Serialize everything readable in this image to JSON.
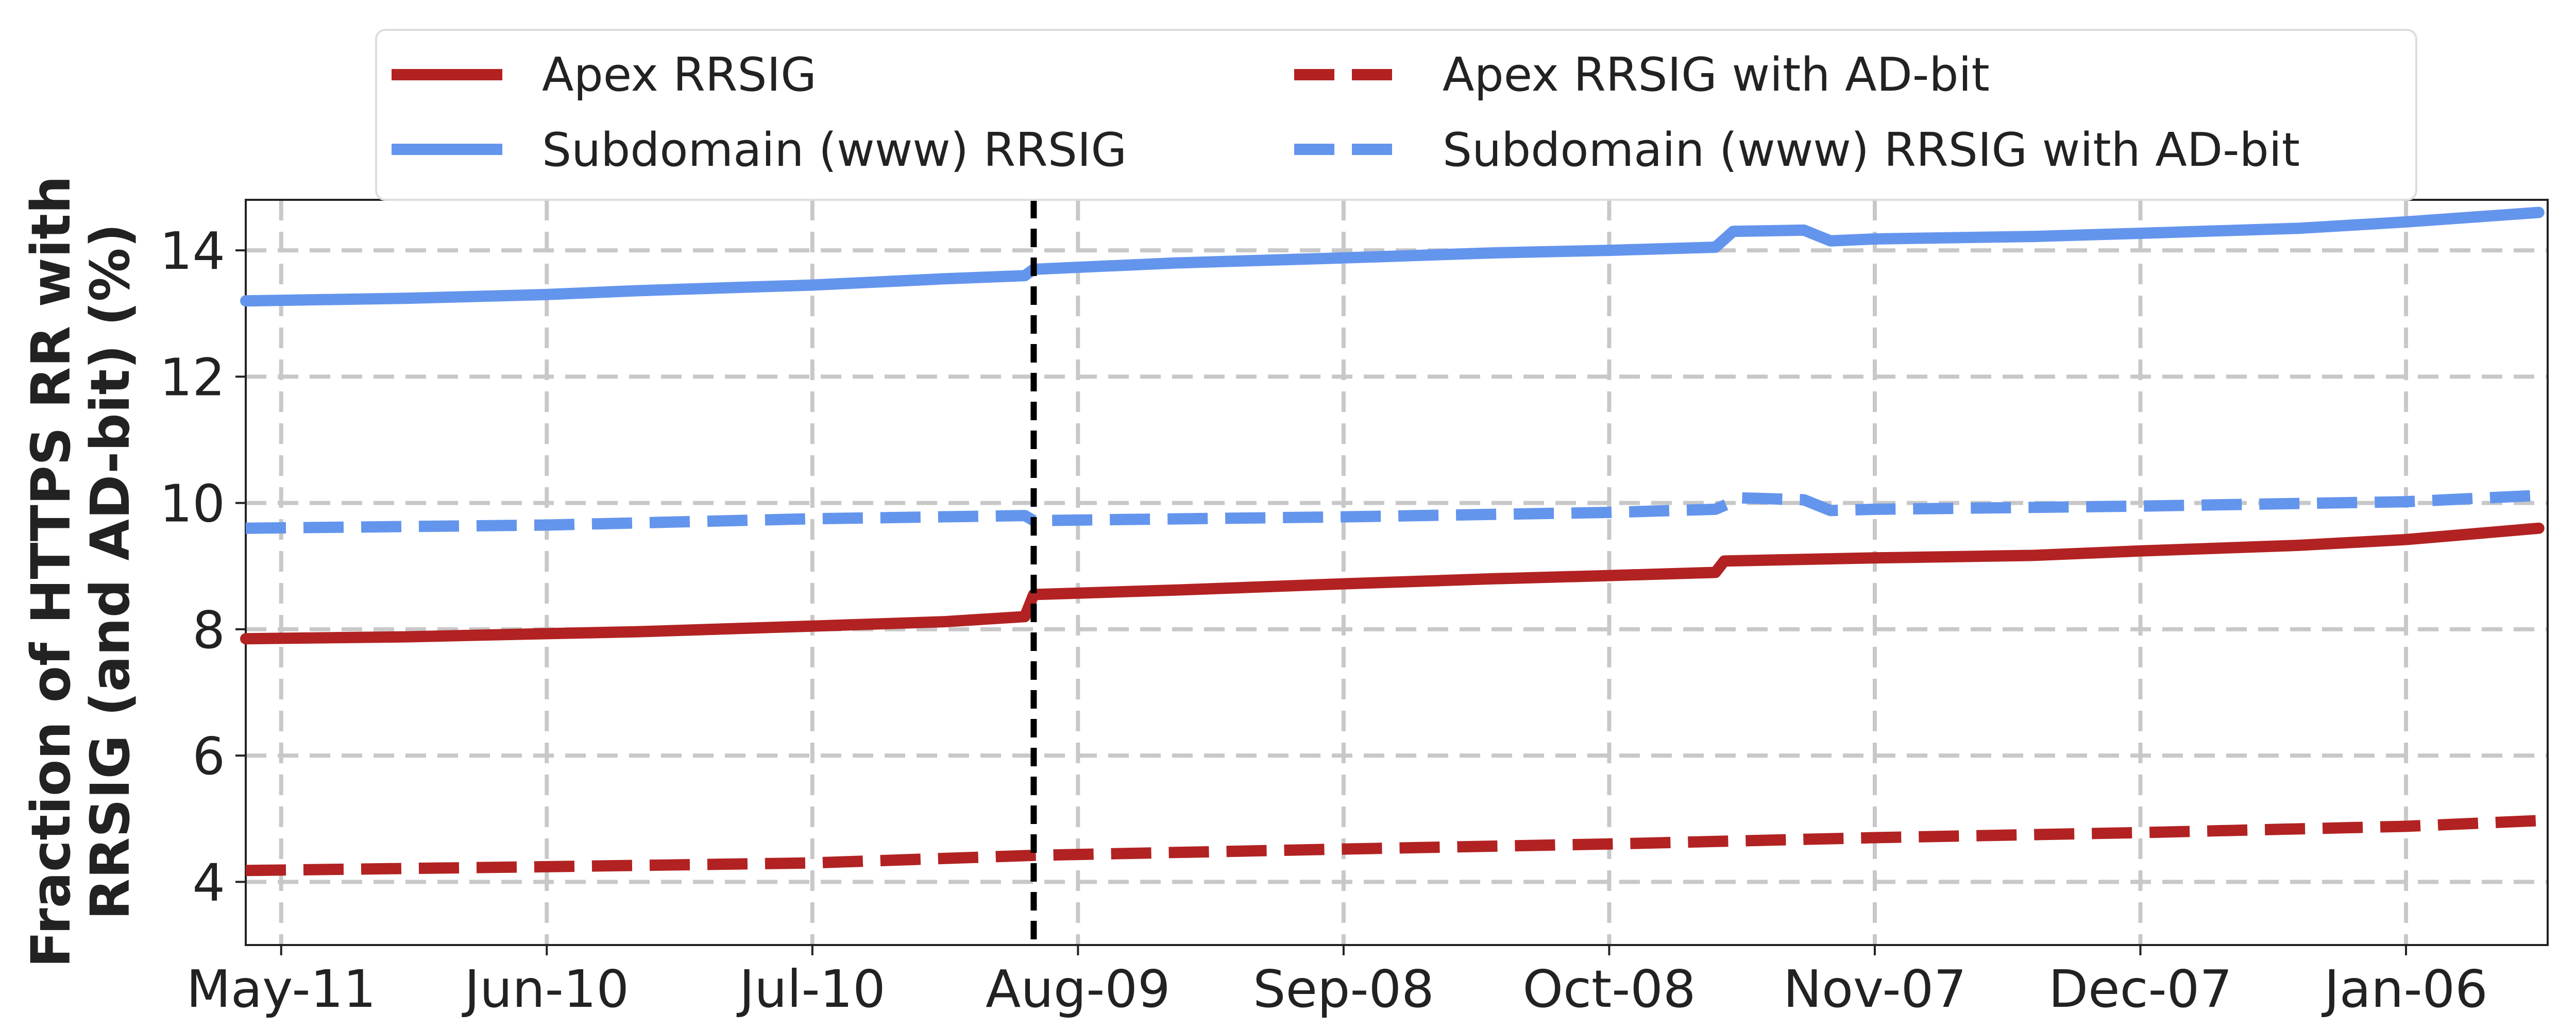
{
  "chart_data": {
    "type": "line",
    "ylabel_lines": [
      "Fraction of HTTPS RR with",
      "RRSIG (and AD-bit) (%)"
    ],
    "x_tick_labels": [
      "May-11",
      "Jun-10",
      "Jul-10",
      "Aug-09",
      "Sep-08",
      "Oct-08",
      "Nov-07",
      "Dec-07",
      "Jan-06"
    ],
    "x_tick_dates": [
      "2023-05-11",
      "2023-06-10",
      "2023-07-10",
      "2023-08-09",
      "2023-09-08",
      "2023-10-08",
      "2023-11-07",
      "2023-12-07",
      "2024-01-06"
    ],
    "xlim": [
      "2023-05-07",
      "2024-01-22"
    ],
    "ylim": [
      3.0,
      14.8
    ],
    "y_ticks": [
      4,
      6,
      8,
      10,
      12,
      14
    ],
    "grid": true,
    "legend_placement": "top-center",
    "vline": {
      "x": "2023-08-04",
      "style": "dashed",
      "color": "#000000"
    },
    "series": [
      {
        "name": "Apex RRSIG",
        "color": "#b22222",
        "style": "solid",
        "points": [
          [
            "2023-05-07",
            7.85
          ],
          [
            "2023-05-25",
            7.88
          ],
          [
            "2023-06-10",
            7.93
          ],
          [
            "2023-06-20",
            7.96
          ],
          [
            "2023-07-10",
            8.05
          ],
          [
            "2023-07-25",
            8.12
          ],
          [
            "2023-08-03",
            8.2
          ],
          [
            "2023-08-04",
            8.55
          ],
          [
            "2023-08-20",
            8.62
          ],
          [
            "2023-09-08",
            8.72
          ],
          [
            "2023-09-25",
            8.8
          ],
          [
            "2023-10-08",
            8.85
          ],
          [
            "2023-10-20",
            8.9
          ],
          [
            "2023-10-21",
            9.08
          ],
          [
            "2023-11-07",
            9.13
          ],
          [
            "2023-11-25",
            9.17
          ],
          [
            "2023-12-07",
            9.24
          ],
          [
            "2023-12-25",
            9.33
          ],
          [
            "2024-01-06",
            9.42
          ],
          [
            "2024-01-21",
            9.6
          ]
        ]
      },
      {
        "name": "Subdomain (www) RRSIG",
        "color": "#6495ed",
        "style": "solid",
        "points": [
          [
            "2023-05-07",
            13.2
          ],
          [
            "2023-05-25",
            13.24
          ],
          [
            "2023-06-10",
            13.3
          ],
          [
            "2023-06-20",
            13.36
          ],
          [
            "2023-07-10",
            13.45
          ],
          [
            "2023-07-25",
            13.55
          ],
          [
            "2023-08-03",
            13.6
          ],
          [
            "2023-08-04",
            13.7
          ],
          [
            "2023-08-20",
            13.8
          ],
          [
            "2023-09-08",
            13.88
          ],
          [
            "2023-09-25",
            13.96
          ],
          [
            "2023-10-08",
            14.0
          ],
          [
            "2023-10-20",
            14.05
          ],
          [
            "2023-10-22",
            14.3
          ],
          [
            "2023-10-30",
            14.32
          ],
          [
            "2023-11-02",
            14.15
          ],
          [
            "2023-11-07",
            14.18
          ],
          [
            "2023-11-25",
            14.22
          ],
          [
            "2023-12-07",
            14.27
          ],
          [
            "2023-12-25",
            14.35
          ],
          [
            "2024-01-06",
            14.45
          ],
          [
            "2024-01-21",
            14.6
          ]
        ]
      },
      {
        "name": "Apex RRSIG with AD-bit",
        "color": "#b22222",
        "style": "dashed",
        "points": [
          [
            "2023-05-07",
            4.18
          ],
          [
            "2023-06-10",
            4.24
          ],
          [
            "2023-07-10",
            4.3
          ],
          [
            "2023-08-04",
            4.42
          ],
          [
            "2023-09-08",
            4.52
          ],
          [
            "2023-10-08",
            4.6
          ],
          [
            "2023-11-07",
            4.7
          ],
          [
            "2023-12-07",
            4.78
          ],
          [
            "2024-01-06",
            4.88
          ],
          [
            "2024-01-21",
            4.97
          ]
        ]
      },
      {
        "name": "Subdomain (www) RRSIG with AD-bit",
        "color": "#6495ed",
        "style": "dashed",
        "points": [
          [
            "2023-05-07",
            9.6
          ],
          [
            "2023-06-10",
            9.65
          ],
          [
            "2023-07-10",
            9.75
          ],
          [
            "2023-08-03",
            9.8
          ],
          [
            "2023-08-04",
            9.72
          ],
          [
            "2023-09-08",
            9.78
          ],
          [
            "2023-10-08",
            9.85
          ],
          [
            "2023-10-20",
            9.9
          ],
          [
            "2023-10-23",
            10.08
          ],
          [
            "2023-10-30",
            10.05
          ],
          [
            "2023-11-02",
            9.88
          ],
          [
            "2023-11-07",
            9.9
          ],
          [
            "2023-12-07",
            9.95
          ],
          [
            "2024-01-06",
            10.02
          ],
          [
            "2024-01-21",
            10.12
          ]
        ]
      }
    ]
  }
}
